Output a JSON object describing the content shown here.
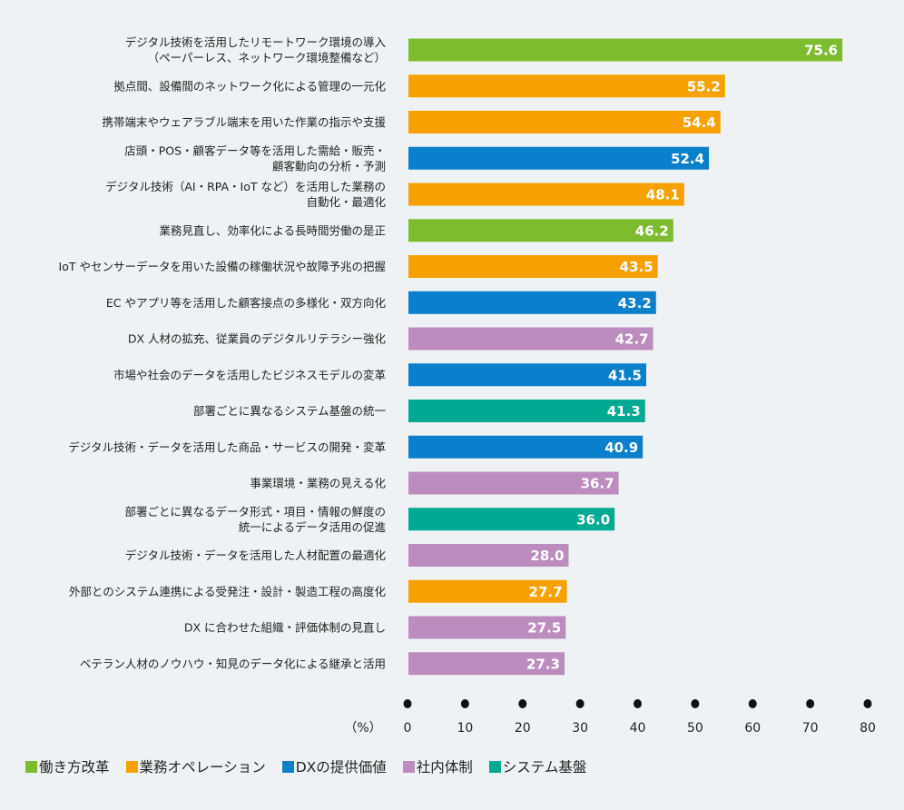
{
  "chart_data": {
    "type": "bar",
    "orientation": "horizontal",
    "unit_label": "（%）",
    "xlim": [
      0,
      80
    ],
    "xticks": [
      0,
      10,
      20,
      30,
      40,
      50,
      60,
      70,
      80
    ],
    "grid": false,
    "legend_position": "bottom-left",
    "groups": [
      {
        "name": "働き方改革",
        "color": "#7dbb2f"
      },
      {
        "name": "業務オペレーション",
        "color": "#f6a100"
      },
      {
        "name": "DXの提供価値",
        "color": "#0a7fcb"
      },
      {
        "name": "社内体制",
        "color": "#bd8cbf"
      },
      {
        "name": "システム基盤",
        "color": "#00a991"
      }
    ],
    "categories": [
      [
        "デジタル技術を活用したリモートワーク環境の導入",
        "（ペーパーレス、ネットワーク環境整備など）"
      ],
      [
        "拠点間、設備間のネットワーク化による管理の一元化"
      ],
      [
        "携帯端末やウェアラブル端末を用いた作業の指示や支援"
      ],
      [
        "店頭・POS・顧客データ等を活用した需給・販売・",
        "顧客動向の分析・予測"
      ],
      [
        "デジタル技術（AI・RPA・IoT など）を活用した業務の",
        "自動化・最適化"
      ],
      [
        "業務見直し、効率化による長時間労働の是正"
      ],
      [
        "IoT やセンサーデータを用いた設備の稼働状況や故障予兆の把握"
      ],
      [
        "EC やアプリ等を活用した顧客接点の多様化・双方向化"
      ],
      [
        "DX 人材の拡充、従業員のデジタルリテラシー強化"
      ],
      [
        "市場や社会のデータを活用したビジネスモデルの変革"
      ],
      [
        "部署ごとに異なるシステム基盤の統一"
      ],
      [
        "デジタル技術・データを活用した商品・サービスの開発・変革"
      ],
      [
        "事業環境・業務の見える化"
      ],
      [
        "部署ごとに異なるデータ形式・項目・情報の鮮度の",
        "統一によるデータ活用の促進"
      ],
      [
        "デジタル技術・データを活用した人材配置の最適化"
      ],
      [
        "外部とのシステム連携による受発注・設計・製造工程の高度化"
      ],
      [
        "DX に合わせた組織・評価体制の見直し"
      ],
      [
        "ベテラン人材のノウハウ・知見のデータ化による継承と活用"
      ]
    ],
    "values": [
      75.6,
      55.2,
      54.4,
      52.4,
      48.1,
      46.2,
      43.5,
      43.2,
      42.7,
      41.5,
      41.3,
      40.9,
      36.7,
      36.0,
      28.0,
      27.7,
      27.5,
      27.3
    ],
    "value_labels": [
      "75.6",
      "55.2",
      "54.4",
      "52.4",
      "48.1",
      "46.2",
      "43.5",
      "43.2",
      "42.7",
      "41.5",
      "41.3",
      "40.9",
      "36.7",
      "36.0",
      "28.0",
      "27.7",
      "27.5",
      "27.3"
    ],
    "group_index": [
      0,
      1,
      1,
      2,
      1,
      0,
      1,
      2,
      3,
      2,
      4,
      2,
      3,
      4,
      3,
      1,
      3,
      3
    ]
  }
}
